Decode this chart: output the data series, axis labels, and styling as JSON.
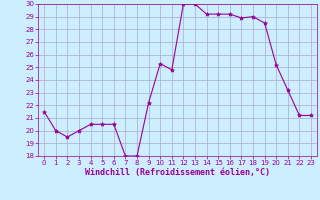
{
  "x": [
    0,
    1,
    2,
    3,
    4,
    5,
    6,
    7,
    8,
    9,
    10,
    11,
    12,
    13,
    14,
    15,
    16,
    17,
    18,
    19,
    20,
    21,
    22,
    23
  ],
  "y": [
    21.5,
    20.0,
    19.5,
    20.0,
    20.5,
    20.5,
    20.5,
    18.0,
    18.0,
    22.2,
    25.3,
    24.8,
    30.0,
    30.0,
    29.2,
    29.2,
    29.2,
    28.9,
    29.0,
    28.5,
    25.2,
    23.2,
    21.2,
    21.2
  ],
  "line_color": "#990099",
  "marker": "*",
  "marker_size": 3.0,
  "bg_color": "#cceeff",
  "grid_color": "#aaaacc",
  "xlabel": "Windchill (Refroidissement éolien,°C)",
  "xlabel_color": "#990099",
  "ylim": [
    18,
    30
  ],
  "xlim": [
    -0.5,
    23.5
  ],
  "yticks": [
    18,
    19,
    20,
    21,
    22,
    23,
    24,
    25,
    26,
    27,
    28,
    29,
    30
  ],
  "xticks": [
    0,
    1,
    2,
    3,
    4,
    5,
    6,
    7,
    8,
    9,
    10,
    11,
    12,
    13,
    14,
    15,
    16,
    17,
    18,
    19,
    20,
    21,
    22,
    23
  ],
  "tick_color": "#990099",
  "tick_fontsize": 5.0,
  "xlabel_fontsize": 6.0
}
